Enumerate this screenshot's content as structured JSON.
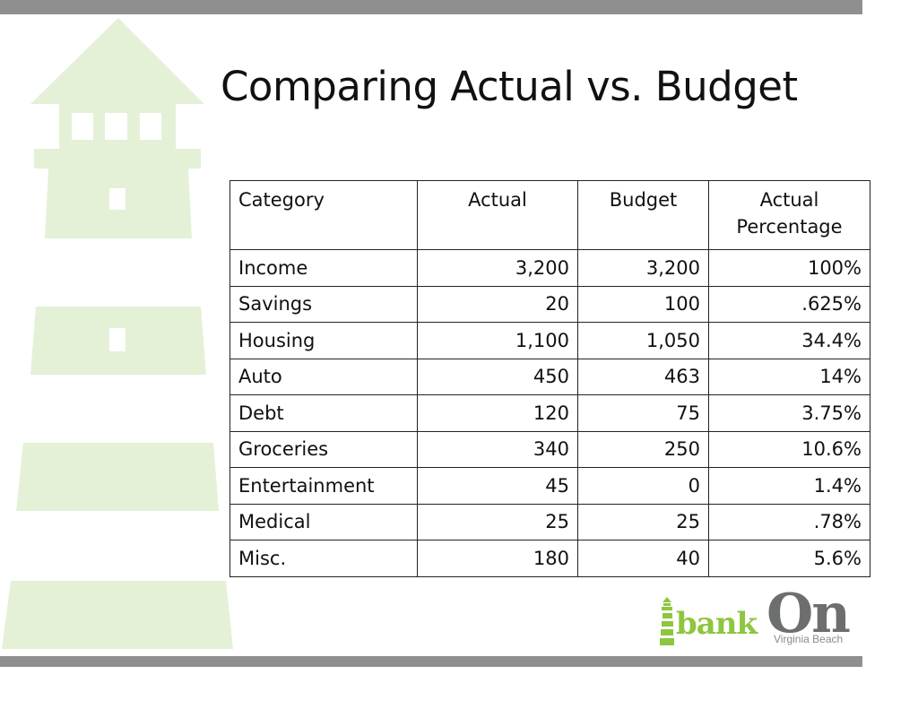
{
  "title": "Comparing Actual vs. Budget",
  "table": {
    "headers": {
      "category": "Category",
      "actual": "Actual",
      "budget": "Budget",
      "percentage_line1": "Actual",
      "percentage_line2": "Percentage"
    },
    "rows": [
      {
        "category": "Income",
        "actual": "3,200",
        "budget": "3,200",
        "percentage": "100%"
      },
      {
        "category": "Savings",
        "actual": "20",
        "budget": "100",
        "percentage": ".625%"
      },
      {
        "category": "Housing",
        "actual": "1,100",
        "budget": "1,050",
        "percentage": "34.4%"
      },
      {
        "category": "Auto",
        "actual": "450",
        "budget": "463",
        "percentage": "14%"
      },
      {
        "category": "Debt",
        "actual": "120",
        "budget": "75",
        "percentage": "3.75%"
      },
      {
        "category": "Groceries",
        "actual": "340",
        "budget": "250",
        "percentage": "10.6%"
      },
      {
        "category": "Entertainment",
        "actual": "45",
        "budget": "0",
        "percentage": "1.4%"
      },
      {
        "category": "Medical",
        "actual": "25",
        "budget": "25",
        "percentage": ".78%"
      },
      {
        "category": "Misc.",
        "actual": "180",
        "budget": "40",
        "percentage": "5.6%"
      }
    ]
  },
  "logo": {
    "word1": "bank",
    "word2": "On",
    "subtitle": "Virginia Beach"
  },
  "colors": {
    "accent_bar": "#8f8f8f",
    "lighthouse": "#e4f1d6",
    "logo_green": "#8dc63f",
    "logo_gray": "#6d6e70"
  },
  "icons": {
    "background": "lighthouse-illustration",
    "logo_mark": "lighthouse-icon"
  }
}
